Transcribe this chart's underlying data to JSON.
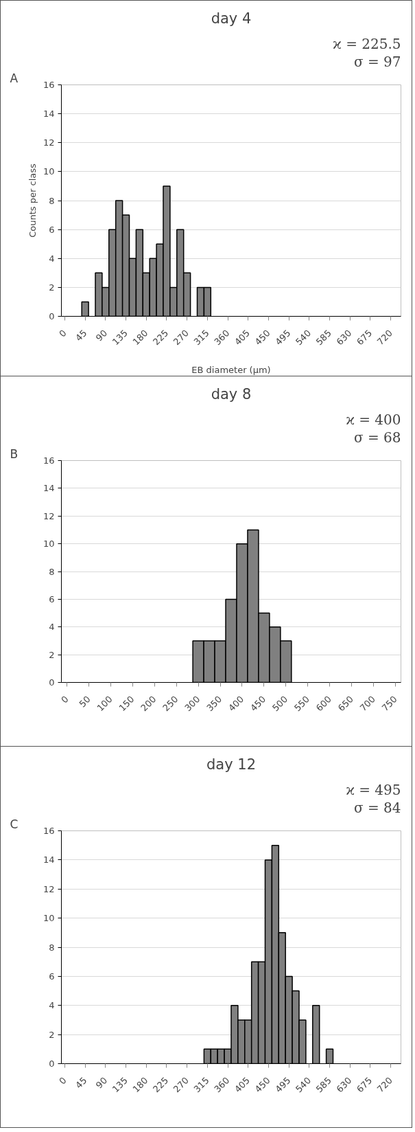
{
  "chart_data": [
    {
      "type": "histogram",
      "title": "day 4",
      "xlabel": "EB diameter (µm)",
      "ylabel": "Counts per class",
      "annotations": [
        "A",
        "ϰ = 225.5",
        "σ = 97"
      ],
      "bins": [
        37.5,
        52.5,
        67.5,
        82.5,
        97.5,
        112.5,
        127.5,
        142.5,
        157.5,
        172.5,
        187.5,
        202.5,
        217.5,
        232.5,
        247.5,
        262.5,
        277.5,
        292.5,
        307.5,
        322.5
      ],
      "values": [
        1,
        0,
        3,
        2,
        6,
        8,
        7,
        4,
        6,
        3,
        4,
        5,
        9,
        2,
        6,
        3,
        0,
        2,
        2
      ],
      "color": "#808080",
      "xlim": [
        -7.5,
        742.5
      ],
      "xticks": [
        0,
        45,
        90,
        135,
        180,
        225,
        270,
        315,
        360,
        405,
        450,
        495,
        540,
        585,
        630,
        675,
        720
      ],
      "ylim": [
        0,
        16
      ],
      "yticks": [
        0,
        2,
        4,
        6,
        8,
        10,
        12,
        14,
        16
      ],
      "grid": "y"
    },
    {
      "type": "histogram",
      "title": "day 8",
      "annotations": [
        "B",
        "ϰ = 400",
        "σ = 68"
      ],
      "bins": [
        287.5,
        312.5,
        337.5,
        362.5,
        387.5,
        412.5,
        437.5,
        462.5,
        487.5,
        512.5
      ],
      "values": [
        3,
        3,
        3,
        6,
        10,
        11,
        5,
        4,
        3
      ],
      "color": "#808080",
      "xlim": [
        -12.5,
        762.5
      ],
      "xticks": [
        0,
        50,
        100,
        150,
        200,
        250,
        300,
        350,
        400,
        450,
        500,
        550,
        600,
        650,
        700,
        750
      ],
      "ylim": [
        0,
        16
      ],
      "yticks": [
        0,
        2,
        4,
        6,
        8,
        10,
        12,
        14,
        16
      ],
      "grid": "y"
    },
    {
      "type": "histogram",
      "title": "day 12",
      "annotations": [
        "C",
        "ϰ = 495",
        "σ = 84"
      ],
      "bins": [
        307.5,
        322.5,
        337.5,
        352.5,
        367.5,
        382.5,
        397.5,
        412.5,
        427.5,
        442.5,
        457.5,
        472.5,
        487.5,
        502.5,
        517.5,
        532.5,
        547.5,
        562.5,
        577.5,
        592.5
      ],
      "values": [
        1,
        1,
        1,
        1,
        4,
        3,
        3,
        7,
        7,
        14,
        15,
        9,
        6,
        5,
        3,
        0,
        4,
        0,
        1
      ],
      "color": "#808080",
      "xlim": [
        -7.5,
        742.5
      ],
      "xticks": [
        0,
        45,
        90,
        135,
        180,
        225,
        270,
        315,
        360,
        405,
        450,
        495,
        540,
        585,
        630,
        675,
        720
      ],
      "ylim": [
        0,
        16
      ],
      "yticks": [
        0,
        2,
        4,
        6,
        8,
        10,
        12,
        14,
        16
      ],
      "grid": "y"
    }
  ]
}
